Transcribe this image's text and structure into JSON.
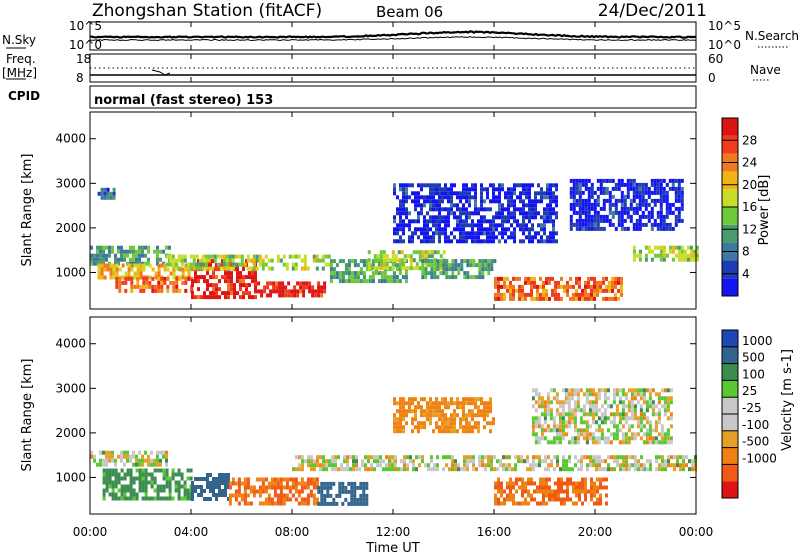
{
  "header": {
    "station": "Zhongshan Station (fitACF)",
    "beam": "Beam 06",
    "date": "24/Dec/2011"
  },
  "panels": {
    "nsky_label": "N.Sky",
    "nsky_ticks": [
      "10^5",
      "10^0"
    ],
    "nsearch_label": "N.Search",
    "nsearch_ticks": [
      "10^5",
      "10^0"
    ],
    "freq_label_1": "Freq.",
    "freq_label_2": "[MHz]",
    "freq_ticks": [
      "18",
      "8"
    ],
    "nave_label": "Nave",
    "nave_ticks": [
      "60",
      "0"
    ],
    "cpid_label": "CPID",
    "cpid_text": "normal (fast stereo) 153"
  },
  "axes": {
    "ylabel": "Slant Range [km]",
    "xlabel": "Time UT",
    "yticks": [
      "1000",
      "2000",
      "3000",
      "4000"
    ],
    "xticks": [
      "00:00",
      "04:00",
      "08:00",
      "12:00",
      "16:00",
      "20:00",
      "00:00"
    ]
  },
  "chart_data": [
    {
      "type": "heatmap",
      "name": "power",
      "x_range_hours": [
        0,
        24
      ],
      "ylim": [
        180,
        4600
      ],
      "ylabel": "Slant Range [km]",
      "colorbar": {
        "label": "Power [dB]",
        "ticks": [
          "4",
          "8",
          "12",
          "16",
          "20",
          "24",
          "28"
        ],
        "colors": [
          "#1414f0",
          "#1e3cb4",
          "#3c78a0",
          "#4a9a6e",
          "#6ec83c",
          "#c8dc28",
          "#f0b414",
          "#f0781e",
          "#f03c1e",
          "#dc1414"
        ]
      },
      "regions": [
        {
          "t": [
            0.3,
            1.0
          ],
          "r": [
            2700,
            2900
          ],
          "level": 8
        },
        {
          "t": [
            0.0,
            3.2
          ],
          "r": [
            1200,
            1600
          ],
          "level": 12
        },
        {
          "t": [
            0.3,
            4.0
          ],
          "r": [
            900,
            1200
          ],
          "level": 20
        },
        {
          "t": [
            1.0,
            4.0
          ],
          "r": [
            600,
            900
          ],
          "level": 24
        },
        {
          "t": [
            4.0,
            6.5
          ],
          "r": [
            450,
            1300
          ],
          "level": 28
        },
        {
          "t": [
            6.5,
            9.3
          ],
          "r": [
            450,
            800
          ],
          "level": 28
        },
        {
          "t": [
            3.0,
            9.5
          ],
          "r": [
            1100,
            1400
          ],
          "level": 16
        },
        {
          "t": [
            9.5,
            12.5
          ],
          "r": [
            800,
            1300
          ],
          "level": 12
        },
        {
          "t": [
            11.0,
            14.0
          ],
          "r": [
            1100,
            1500
          ],
          "level": 16
        },
        {
          "t": [
            12.0,
            18.5
          ],
          "r": [
            1700,
            3000
          ],
          "level": 4
        },
        {
          "t": [
            13.0,
            16.0
          ],
          "r": [
            900,
            1300
          ],
          "level": 12
        },
        {
          "t": [
            16.0,
            21.0
          ],
          "r": [
            450,
            900
          ],
          "level": 24
        },
        {
          "t": [
            21.5,
            24.0
          ],
          "r": [
            1300,
            1600
          ],
          "level": 16
        },
        {
          "t": [
            19.0,
            23.5
          ],
          "r": [
            2000,
            3100
          ],
          "level": 4
        }
      ]
    },
    {
      "type": "heatmap",
      "name": "velocity",
      "x_range_hours": [
        0,
        24
      ],
      "ylim": [
        180,
        4600
      ],
      "ylabel": "Slant Range [km]",
      "colorbar": {
        "label": "Velocity [m s-1]",
        "ticks": [
          "1000",
          "500",
          "100",
          "25",
          "-25",
          "-100",
          "-500",
          "-1000"
        ],
        "colors": [
          "#1e46b4",
          "#32648c",
          "#3c8c50",
          "#5ac832",
          "#c8c8c8",
          "#c8c8c8",
          "#e6a028",
          "#f08214",
          "#f05a14",
          "#dc1414"
        ]
      },
      "regions": [
        {
          "t": [
            0.0,
            3.0
          ],
          "r": [
            1250,
            1600
          ],
          "value": 0
        },
        {
          "t": [
            0.5,
            4.0
          ],
          "r": [
            500,
            1200
          ],
          "value": 100
        },
        {
          "t": [
            4.0,
            5.5
          ],
          "r": [
            500,
            1100
          ],
          "value": 500
        },
        {
          "t": [
            5.5,
            9.0
          ],
          "r": [
            400,
            1000
          ],
          "value": -300
        },
        {
          "t": [
            9.0,
            11.0
          ],
          "r": [
            400,
            900
          ],
          "value": 500
        },
        {
          "t": [
            8.0,
            24.0
          ],
          "r": [
            1150,
            1500
          ],
          "value": 0
        },
        {
          "t": [
            12.0,
            16.0
          ],
          "r": [
            2000,
            2800
          ],
          "value": -100
        },
        {
          "t": [
            16.0,
            20.5
          ],
          "r": [
            400,
            1000
          ],
          "value": -300
        },
        {
          "t": [
            17.5,
            23.0
          ],
          "r": [
            1800,
            3000
          ],
          "value": 0
        }
      ]
    }
  ]
}
